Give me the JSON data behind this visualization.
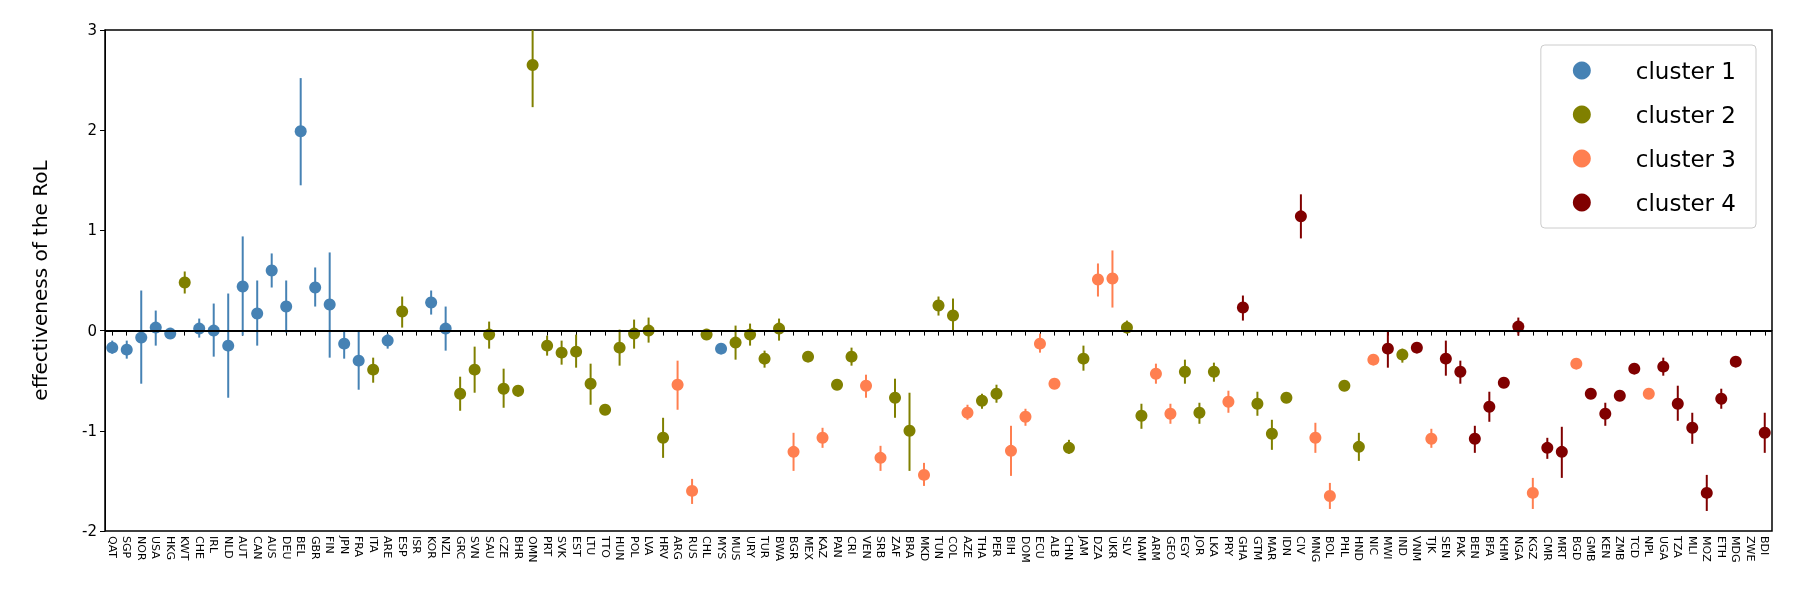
{
  "chart_data": {
    "type": "scatter",
    "ylabel": "effectiveness of the RoL",
    "categories": [
      "QAT",
      "SGP",
      "NOR",
      "USA",
      "HKG",
      "KWT",
      "CHE",
      "IRL",
      "NLD",
      "AUT",
      "CAN",
      "AUS",
      "DEU",
      "BEL",
      "GBR",
      "FIN",
      "JPN",
      "FRA",
      "ITA",
      "ARE",
      "ESP",
      "ISR",
      "KOR",
      "NZL",
      "GRC",
      "SVN",
      "SAU",
      "CZE",
      "BHR",
      "OMN",
      "PRT",
      "SVK",
      "EST",
      "LTU",
      "TTO",
      "HUN",
      "POL",
      "LVA",
      "HRV",
      "ARG",
      "RUS",
      "CHL",
      "MYS",
      "MUS",
      "URY",
      "TUR",
      "BWA",
      "BGR",
      "MEX",
      "KAZ",
      "PAN",
      "CRI",
      "VEN",
      "SRB",
      "ZAF",
      "BRA",
      "MKD",
      "TUN",
      "COL",
      "AZE",
      "THA",
      "PER",
      "BIH",
      "DOM",
      "ECU",
      "ALB",
      "CHN",
      "JAM",
      "DZA",
      "UKR",
      "SLV",
      "NAM",
      "ARM",
      "GEO",
      "EGY",
      "JOR",
      "LKA",
      "PRY",
      "GHA",
      "GTM",
      "MAR",
      "IDN",
      "CIV",
      "MNG",
      "BOL",
      "PHL",
      "HND",
      "NIC",
      "MWI",
      "IND",
      "VNM",
      "TJK",
      "SEN",
      "PAK",
      "BEN",
      "BFA",
      "KHM",
      "NGA",
      "KGZ",
      "CMR",
      "MRT",
      "BGD",
      "GMB",
      "KEN",
      "ZMB",
      "TCD",
      "NPL",
      "UGA",
      "TZA",
      "MLI",
      "MOZ",
      "ETH",
      "MDG",
      "ZWE",
      "BDI"
    ],
    "series": [
      {
        "name": "cluster 1",
        "color": "#4682b4",
        "values": [
          -0.17,
          -0.19,
          -0.07,
          0.03,
          -0.03,
          null,
          0.02,
          0.0,
          -0.15,
          0.44,
          0.17,
          0.6,
          0.24,
          1.99,
          0.43,
          0.26,
          -0.13,
          -0.3,
          null,
          -0.1,
          null,
          null,
          0.28,
          0.02,
          null,
          null,
          null,
          null,
          null,
          null,
          null,
          null,
          null,
          null,
          null,
          null,
          null,
          null,
          null,
          null,
          null,
          null,
          -0.18,
          null,
          null,
          null,
          null,
          null,
          null,
          null,
          null,
          null,
          null,
          null,
          null,
          null,
          null,
          null,
          null,
          null,
          null,
          null,
          null,
          null,
          null,
          null,
          null,
          null,
          null,
          null,
          null,
          null,
          null,
          null,
          null,
          null,
          null,
          null,
          null,
          null,
          null,
          null,
          null,
          null,
          null,
          null,
          null,
          null,
          null,
          null,
          null,
          null,
          null,
          null,
          null,
          null,
          null,
          null,
          null,
          null,
          null,
          null,
          null,
          null,
          null,
          null,
          null,
          null,
          null,
          null,
          null,
          null,
          null,
          null,
          null
        ],
        "errors": [
          [
            -0.23,
            -0.1
          ],
          [
            -0.28,
            -0.1
          ],
          [
            -0.53,
            0.4
          ],
          [
            -0.15,
            0.2
          ],
          null,
          null,
          [
            -0.07,
            0.12
          ],
          [
            -0.26,
            0.27
          ],
          [
            -0.67,
            0.37
          ],
          [
            -0.05,
            0.94
          ],
          [
            -0.15,
            0.5
          ],
          [
            0.43,
            0.77
          ],
          [
            -0.02,
            0.5
          ],
          [
            1.45,
            2.52
          ],
          [
            0.24,
            0.63
          ],
          [
            -0.27,
            0.78
          ],
          [
            -0.28,
            0.0
          ],
          [
            -0.59,
            0.0
          ],
          null,
          [
            -0.18,
            -0.03
          ],
          null,
          null,
          [
            0.16,
            0.4
          ],
          [
            -0.2,
            0.24
          ],
          null,
          null,
          null,
          null,
          null,
          null,
          null,
          null,
          null,
          null,
          null,
          null,
          null,
          null,
          null,
          null,
          null,
          null,
          null,
          null,
          null,
          null,
          null,
          null,
          null,
          null,
          null,
          null,
          null,
          null,
          null,
          null,
          null,
          null,
          null,
          null,
          null,
          null,
          null,
          null,
          null,
          null,
          null,
          null,
          null,
          null,
          null,
          null,
          null,
          null,
          null,
          null,
          null,
          null,
          null,
          null,
          null,
          null,
          null,
          null,
          null,
          null,
          null,
          null,
          null,
          null,
          null,
          null,
          null,
          null,
          null,
          null,
          null,
          null,
          null,
          null,
          null,
          null,
          null,
          null,
          null,
          null,
          null,
          null,
          null,
          null,
          null,
          null,
          null,
          null,
          null
        ]
      },
      {
        "name": "cluster 2",
        "color": "#808000",
        "values": [
          null,
          null,
          null,
          null,
          null,
          0.48,
          null,
          null,
          null,
          null,
          null,
          null,
          null,
          null,
          null,
          null,
          null,
          null,
          -0.39,
          null,
          0.19,
          null,
          null,
          null,
          -0.63,
          -0.39,
          -0.04,
          -0.58,
          -0.6,
          2.65,
          -0.15,
          -0.22,
          -0.21,
          -0.53,
          -0.79,
          -0.17,
          -0.03,
          0.0,
          -1.07,
          null,
          null,
          -0.04,
          null,
          -0.12,
          -0.04,
          -0.28,
          0.02,
          null,
          -0.26,
          null,
          -0.54,
          -0.26,
          null,
          null,
          -0.67,
          -1.0,
          null,
          0.25,
          0.15,
          null,
          -0.7,
          -0.63,
          null,
          null,
          null,
          null,
          -1.17,
          -0.28,
          null,
          null,
          0.03,
          -0.85,
          null,
          null,
          -0.41,
          -0.82,
          -0.41,
          null,
          null,
          -0.73,
          -1.03,
          -0.67,
          null,
          null,
          null,
          -0.55,
          -1.16,
          null,
          null,
          -0.24,
          null,
          null,
          null,
          null,
          null,
          null,
          null,
          null,
          null,
          null,
          null,
          null,
          null,
          null,
          null,
          null,
          null,
          null,
          null,
          null,
          null,
          null,
          null,
          null,
          null
        ],
        "errors": [
          null,
          null,
          null,
          null,
          null,
          [
            0.37,
            0.59
          ],
          null,
          null,
          null,
          null,
          null,
          null,
          null,
          null,
          null,
          null,
          null,
          null,
          [
            -0.52,
            -0.27
          ],
          null,
          [
            0.03,
            0.34
          ],
          null,
          null,
          null,
          [
            -0.8,
            -0.46
          ],
          [
            -0.62,
            -0.16
          ],
          [
            -0.18,
            0.09
          ],
          [
            -0.77,
            -0.38
          ],
          [
            -0.66,
            -0.55
          ],
          [
            2.23,
            3.0
          ],
          [
            -0.25,
            -0.05
          ],
          [
            -0.34,
            -0.1
          ],
          [
            -0.37,
            -0.04
          ],
          [
            -0.74,
            -0.33
          ],
          null,
          [
            -0.35,
            0.01
          ],
          [
            -0.18,
            0.11
          ],
          [
            -0.12,
            0.13
          ],
          [
            -1.27,
            -0.87
          ],
          null,
          null,
          null,
          null,
          [
            -0.29,
            0.05
          ],
          [
            -0.15,
            0.07
          ],
          [
            -0.37,
            -0.2
          ],
          [
            -0.1,
            0.12
          ],
          null,
          null,
          null,
          null,
          [
            -0.35,
            -0.17
          ],
          null,
          null,
          [
            -0.87,
            -0.48
          ],
          [
            -1.4,
            -0.62
          ],
          null,
          [
            0.15,
            0.34
          ],
          [
            -0.01,
            0.32
          ],
          null,
          [
            -0.78,
            -0.63
          ],
          [
            -0.72,
            -0.54
          ],
          null,
          null,
          null,
          null,
          [
            -1.23,
            -1.09
          ],
          [
            -0.4,
            -0.15
          ],
          null,
          null,
          [
            -0.03,
            0.1
          ],
          [
            -0.98,
            -0.73
          ],
          null,
          null,
          [
            -0.53,
            -0.29
          ],
          [
            -0.93,
            -0.72
          ],
          [
            -0.51,
            -0.32
          ],
          null,
          null,
          [
            -0.85,
            -0.61
          ],
          [
            -1.19,
            -0.89
          ],
          null,
          null,
          null,
          null,
          null,
          [
            -1.3,
            -1.02
          ],
          null,
          null,
          [
            -0.32,
            -0.18
          ],
          null,
          null,
          null,
          null,
          null,
          null,
          null,
          null,
          null,
          null,
          null,
          null,
          null,
          null,
          null,
          null,
          null,
          null,
          null,
          null,
          null,
          null,
          null,
          null,
          null
        ]
      },
      {
        "name": "cluster 3",
        "color": "#ff7f50",
        "values": [
          null,
          null,
          null,
          null,
          null,
          null,
          null,
          null,
          null,
          null,
          null,
          null,
          null,
          null,
          null,
          null,
          null,
          null,
          null,
          null,
          null,
          null,
          null,
          null,
          null,
          null,
          null,
          null,
          null,
          null,
          null,
          null,
          null,
          null,
          null,
          null,
          null,
          null,
          null,
          -0.54,
          -1.6,
          null,
          null,
          null,
          null,
          null,
          null,
          -1.21,
          null,
          -1.07,
          null,
          null,
          -0.55,
          -1.27,
          null,
          null,
          -1.44,
          null,
          null,
          -0.82,
          null,
          null,
          -1.2,
          -0.86,
          -0.13,
          -0.53,
          null,
          null,
          0.51,
          0.52,
          null,
          null,
          -0.43,
          -0.83,
          null,
          null,
          null,
          -0.71,
          null,
          null,
          null,
          null,
          null,
          -1.07,
          -1.65,
          null,
          null,
          -0.29,
          null,
          null,
          null,
          -1.08,
          null,
          null,
          null,
          null,
          null,
          null,
          -1.62,
          null,
          null,
          -0.33,
          null,
          null,
          null,
          null,
          -0.63,
          null,
          null,
          null,
          null,
          null,
          null,
          null,
          null
        ],
        "errors": [
          null,
          null,
          null,
          null,
          null,
          null,
          null,
          null,
          null,
          null,
          null,
          null,
          null,
          null,
          null,
          null,
          null,
          null,
          null,
          null,
          null,
          null,
          null,
          null,
          null,
          null,
          null,
          null,
          null,
          null,
          null,
          null,
          null,
          null,
          null,
          null,
          null,
          null,
          null,
          [
            -0.79,
            -0.3
          ],
          [
            -1.73,
            -1.48
          ],
          null,
          null,
          null,
          null,
          null,
          null,
          [
            -1.4,
            -1.02
          ],
          null,
          [
            -1.17,
            -0.97
          ],
          null,
          null,
          [
            -0.67,
            -0.44
          ],
          [
            -1.4,
            -1.15
          ],
          null,
          null,
          [
            -1.55,
            -1.32
          ],
          null,
          null,
          [
            -0.89,
            -0.74
          ],
          null,
          null,
          [
            -1.45,
            -0.95
          ],
          [
            -0.95,
            -0.78
          ],
          [
            -0.22,
            -0.03
          ],
          null,
          null,
          null,
          [
            0.34,
            0.67
          ],
          [
            0.23,
            0.8
          ],
          null,
          null,
          [
            -0.53,
            -0.33
          ],
          [
            -0.93,
            -0.73
          ],
          null,
          null,
          null,
          [
            -0.82,
            -0.6
          ],
          null,
          null,
          null,
          null,
          null,
          [
            -1.22,
            -0.92
          ],
          [
            -1.78,
            -1.52
          ],
          null,
          null,
          null,
          null,
          null,
          null,
          [
            -1.17,
            -0.98
          ],
          null,
          null,
          null,
          null,
          null,
          null,
          [
            -1.78,
            -1.47
          ],
          null,
          null,
          null,
          null,
          null,
          null,
          null,
          null,
          null,
          null,
          null,
          null,
          null,
          null,
          null,
          null
        ]
      },
      {
        "name": "cluster 4",
        "color": "#800000",
        "values": [
          null,
          null,
          null,
          null,
          null,
          null,
          null,
          null,
          null,
          null,
          null,
          null,
          null,
          null,
          null,
          null,
          null,
          null,
          null,
          null,
          null,
          null,
          null,
          null,
          null,
          null,
          null,
          null,
          null,
          null,
          null,
          null,
          null,
          null,
          null,
          null,
          null,
          null,
          null,
          null,
          null,
          null,
          null,
          null,
          null,
          null,
          null,
          null,
          null,
          null,
          null,
          null,
          null,
          null,
          null,
          null,
          null,
          null,
          null,
          null,
          null,
          null,
          null,
          null,
          null,
          null,
          null,
          null,
          null,
          null,
          null,
          null,
          null,
          null,
          null,
          null,
          null,
          null,
          0.23,
          null,
          null,
          null,
          1.14,
          null,
          null,
          null,
          null,
          null,
          -0.18,
          null,
          -0.17,
          null,
          -0.28,
          -0.41,
          -1.08,
          -0.76,
          -0.52,
          0.04,
          null,
          -1.17,
          -1.21,
          null,
          -0.63,
          -0.83,
          -0.65,
          -0.38,
          null,
          -0.36,
          -0.73,
          -0.97,
          -1.62,
          -0.68,
          -0.31,
          null,
          -1.02
        ],
        "errors": [
          null,
          null,
          null,
          null,
          null,
          null,
          null,
          null,
          null,
          null,
          null,
          null,
          null,
          null,
          null,
          null,
          null,
          null,
          null,
          null,
          null,
          null,
          null,
          null,
          null,
          null,
          null,
          null,
          null,
          null,
          null,
          null,
          null,
          null,
          null,
          null,
          null,
          null,
          null,
          null,
          null,
          null,
          null,
          null,
          null,
          null,
          null,
          null,
          null,
          null,
          null,
          null,
          null,
          null,
          null,
          null,
          null,
          null,
          null,
          null,
          null,
          null,
          null,
          null,
          null,
          null,
          null,
          null,
          null,
          null,
          null,
          null,
          null,
          null,
          null,
          null,
          null,
          null,
          [
            0.1,
            0.35
          ],
          null,
          null,
          null,
          [
            0.92,
            1.36
          ],
          null,
          null,
          null,
          null,
          null,
          [
            -0.37,
            0.0
          ],
          null,
          null,
          null,
          [
            -0.45,
            -0.1
          ],
          [
            -0.53,
            -0.3
          ],
          [
            -1.22,
            -0.95
          ],
          [
            -0.91,
            -0.61
          ],
          null,
          [
            -0.05,
            0.13
          ],
          null,
          [
            -1.28,
            -1.07
          ],
          [
            -1.47,
            -0.96
          ],
          null,
          null,
          [
            -0.95,
            -0.72
          ],
          null,
          null,
          null,
          [
            -0.45,
            -0.27
          ],
          [
            -0.9,
            -0.55
          ],
          [
            -1.13,
            -0.82
          ],
          [
            -1.8,
            -1.44
          ],
          [
            -0.78,
            -0.58
          ],
          null,
          null,
          [
            -1.22,
            -0.82
          ]
        ]
      }
    ],
    "ylim": [
      -2,
      3
    ],
    "yticks": [
      -2,
      -1,
      0,
      1,
      2,
      3
    ],
    "ref_lines": [
      {
        "axis": "y",
        "value": 0,
        "color": "#000000"
      }
    ],
    "legend": "top right",
    "marker": "circle",
    "grid": false
  }
}
